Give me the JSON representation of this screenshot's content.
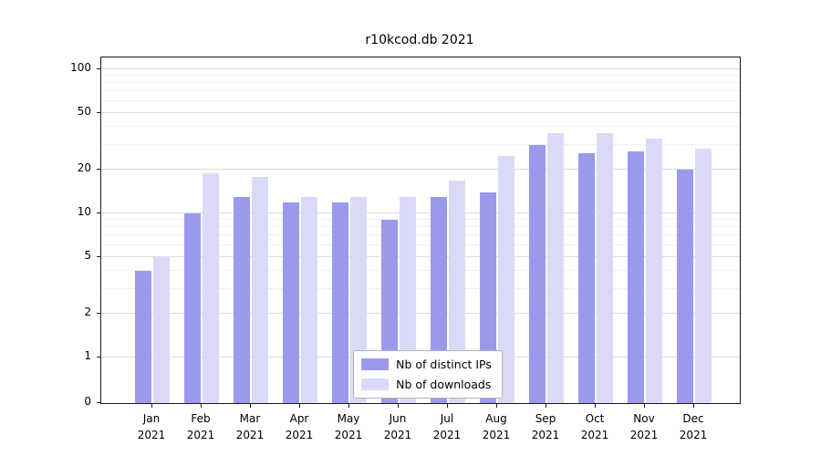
{
  "chart_data": {
    "type": "bar",
    "title": "r10kcod.db 2021",
    "xlabel": "",
    "ylabel": "",
    "yscale": "log (symlog: linear segment between 0 and 1)",
    "ylim": [
      0,
      120
    ],
    "grid": true,
    "legend_position": "lower center",
    "yticks": [
      0,
      1,
      2,
      5,
      10,
      20,
      50,
      100
    ],
    "yticks_minor": [
      3,
      4,
      6,
      7,
      8,
      9,
      30,
      40,
      60,
      70,
      80,
      90
    ],
    "categories": [
      "Jan 2021",
      "Feb 2021",
      "Mar 2021",
      "Apr 2021",
      "May 2021",
      "Jun 2021",
      "Jul 2021",
      "Aug 2021",
      "Sep 2021",
      "Oct 2021",
      "Nov 2021",
      "Dec 2021"
    ],
    "series": [
      {
        "name": "Nb of distinct IPs",
        "color": "#9a9aed",
        "values": [
          4,
          10,
          13,
          12,
          12,
          9,
          13,
          14,
          30,
          26,
          27,
          20
        ]
      },
      {
        "name": "Nb of downloads",
        "color": "#dadaf8",
        "values": [
          5,
          19,
          18,
          13,
          13,
          13,
          17,
          25,
          36,
          36,
          33,
          28
        ]
      }
    ]
  },
  "colors": {
    "distinct_ips": "#9a9aed",
    "downloads": "#dadaf8",
    "axis": "#1a1a1a",
    "grid_major": "#dcdcdc",
    "grid_minor": "#f0f0f0"
  }
}
